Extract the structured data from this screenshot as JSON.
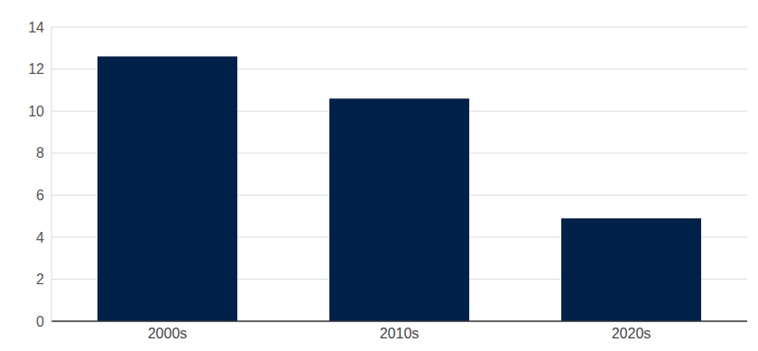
{
  "chart_data": {
    "type": "bar",
    "categories": [
      "2000s",
      "2010s",
      "2020s"
    ],
    "values": [
      12.6,
      10.6,
      4.9
    ],
    "color": "#00214a",
    "ylim": [
      0,
      14
    ],
    "yticks": [
      0,
      2,
      4,
      6,
      8,
      10,
      12,
      14
    ],
    "grid": true
  }
}
